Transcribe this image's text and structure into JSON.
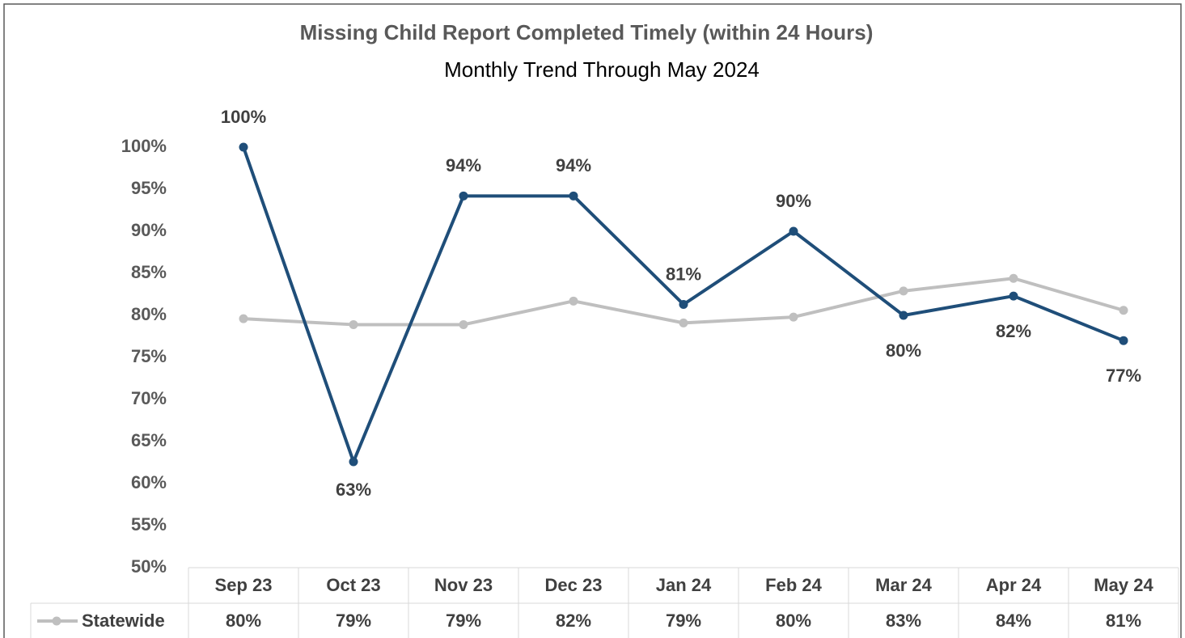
{
  "chart_data": {
    "type": "line",
    "title": "Missing Child Report Completed Timely (within 24 Hours)",
    "subtitle": "Monthly Trend Through May 2024",
    "categories": [
      "Sep 23",
      "Oct 23",
      "Nov 23",
      "Dec 23",
      "Jan 24",
      "Feb 24",
      "Mar 24",
      "Apr 24",
      "May 24"
    ],
    "series": [
      {
        "color": "#1f4e79",
        "values": [
          100,
          62.6,
          94.2,
          94.2,
          81.3,
          90,
          80,
          82.3,
          77
        ],
        "value_labels": [
          "100%",
          "63%",
          "94%",
          "94%",
          "81%",
          "90%",
          "80%",
          "82%",
          "77%"
        ]
      },
      {
        "name": "Statewide",
        "color": "#bfbfbf",
        "values": [
          79.6,
          78.9,
          78.9,
          81.7,
          79.1,
          79.8,
          82.9,
          84.4,
          80.6
        ],
        "value_labels": [
          "80%",
          "79%",
          "79%",
          "82%",
          "79%",
          "80%",
          "83%",
          "84%",
          "81%"
        ]
      }
    ],
    "ylim": [
      50,
      100
    ],
    "yticks": [
      {
        "value": 50,
        "label": "50%"
      },
      {
        "value": 55,
        "label": "55%"
      },
      {
        "value": 60,
        "label": "60%"
      },
      {
        "value": 65,
        "label": "65%"
      },
      {
        "value": 70,
        "label": "70%"
      },
      {
        "value": 75,
        "label": "75%"
      },
      {
        "value": 80,
        "label": "80%"
      },
      {
        "value": 85,
        "label": "85%"
      },
      {
        "value": 90,
        "label": "90%"
      },
      {
        "value": 95,
        "label": "95%"
      },
      {
        "value": 100,
        "label": "100%"
      }
    ],
    "grid": false
  }
}
